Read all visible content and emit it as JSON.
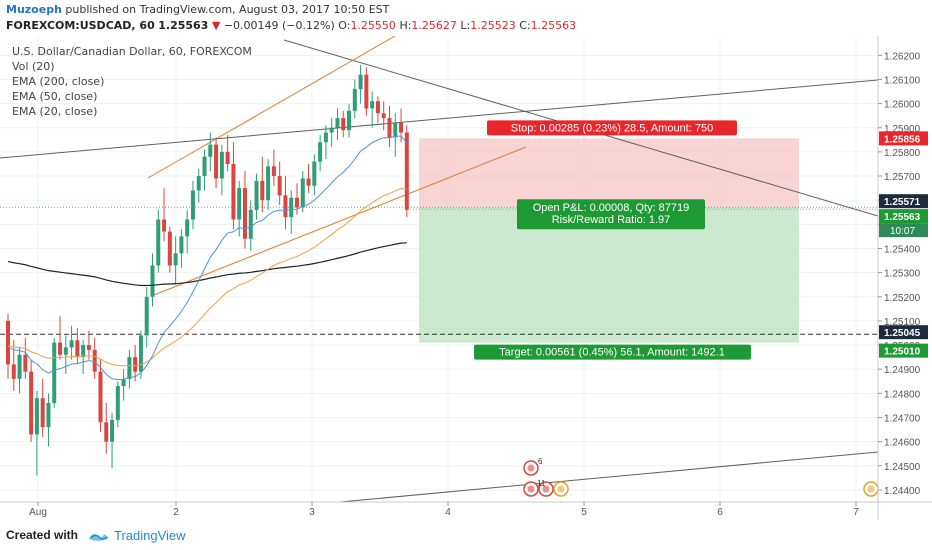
{
  "header": {
    "author": "Muzoeph",
    "published_text": "published on TradingView.com, August 03, 2017 10:50 EST",
    "symbol": "FOREXCOM:USDCAD, 60",
    "last_price": "1.25563",
    "change_arrow": "▼",
    "change": "−0.00149 (−0.12%)",
    "o_label": "O:",
    "o_value": "1.25550",
    "h_label": "H:",
    "h_value": "1.25627",
    "l_label": "L:",
    "l_value": "1.25523",
    "c_label": "C:",
    "c_value": "1.25563"
  },
  "studies": {
    "title": "U.S. Dollar/Canadian Dollar, 60, FOREXCOM",
    "items": [
      "Vol (20)",
      "EMA (200, close)",
      "EMA (50, close)",
      "EMA (20, close)"
    ]
  },
  "position": {
    "stop_label": "Stop: 0.00285 (0.23%) 28.5, Amount: 750",
    "pnl_label": "Open P&L: 0.00008, Qty: 87719",
    "rr_label": "Risk/Reward Ratio: 1.97",
    "target_label": "Target: 0.00561 (0.45%) 56.1, Amount: 1492.1"
  },
  "price_badges": {
    "stop": "1.25856",
    "entry": "1.25571",
    "last": "1.25563",
    "countdown": "10:07",
    "hline": "1.25045",
    "target": "1.25010"
  },
  "events": {
    "ca_count": "6",
    "us_count": "11"
  },
  "footer": {
    "created_with": "Created with",
    "brand": "TradingView"
  },
  "colors": {
    "bull": "#2e9e76",
    "bear": "#d9463f",
    "stop_zone": "#f6c9cb",
    "target_zone": "#c6e7cb",
    "stop_badge": "#e8262b",
    "target_badge": "#1e9a35",
    "ema200": "#222222",
    "ema50": "#f0a046",
    "ema20": "#4f93d8",
    "channel": "#e07d2a",
    "trendline": "#606060"
  },
  "chart_data": {
    "type": "candlestick",
    "y_range": [
      1.2435,
      1.2628
    ],
    "y_ticks": [
      "1.26200",
      "1.26100",
      "1.26000",
      "1.25900",
      "1.25800",
      "1.25700",
      "1.25600",
      "1.25500",
      "1.25400",
      "1.25300",
      "1.25200",
      "1.25100",
      "1.25000",
      "1.24900",
      "1.24800",
      "1.24700",
      "1.24600",
      "1.24500",
      "1.24400"
    ],
    "x_ticks": [
      "Aug",
      "2",
      "3",
      "4",
      "5",
      "6",
      "7"
    ],
    "candles": [
      [
        1.251,
        1.2513,
        1.2486,
        1.2492
      ],
      [
        1.2492,
        1.2502,
        1.2481,
        1.2486
      ],
      [
        1.2486,
        1.2499,
        1.248,
        1.2496
      ],
      [
        1.2496,
        1.2503,
        1.2486,
        1.2489
      ],
      [
        1.2489,
        1.2494,
        1.246,
        1.2463
      ],
      [
        1.2463,
        1.2481,
        1.2446,
        1.2478
      ],
      [
        1.2478,
        1.2486,
        1.2462,
        1.2466
      ],
      [
        1.2466,
        1.248,
        1.2458,
        1.2476
      ],
      [
        1.2476,
        1.2503,
        1.2474,
        1.2501
      ],
      [
        1.2501,
        1.2512,
        1.2494,
        1.2496
      ],
      [
        1.2496,
        1.2504,
        1.2488,
        1.2499
      ],
      [
        1.2499,
        1.2508,
        1.2494,
        1.2502
      ],
      [
        1.2502,
        1.2507,
        1.2492,
        1.2495
      ],
      [
        1.2495,
        1.2502,
        1.2488,
        1.25
      ],
      [
        1.25,
        1.2506,
        1.2494,
        1.2498
      ],
      [
        1.2498,
        1.2503,
        1.2486,
        1.2489
      ],
      [
        1.2489,
        1.2494,
        1.2464,
        1.2468
      ],
      [
        1.2468,
        1.2476,
        1.2455,
        1.246
      ],
      [
        1.246,
        1.2472,
        1.2449,
        1.2469
      ],
      [
        1.2469,
        1.2485,
        1.2466,
        1.2483
      ],
      [
        1.2483,
        1.249,
        1.2477,
        1.2486
      ],
      [
        1.2486,
        1.2498,
        1.2482,
        1.2495
      ],
      [
        1.2495,
        1.25,
        1.2485,
        1.2489
      ],
      [
        1.2489,
        1.2506,
        1.2486,
        1.2504
      ],
      [
        1.2504,
        1.2524,
        1.2499,
        1.252
      ],
      [
        1.252,
        1.2538,
        1.2516,
        1.2533
      ],
      [
        1.2533,
        1.2556,
        1.253,
        1.2552
      ],
      [
        1.2552,
        1.2565,
        1.2543,
        1.2547
      ],
      [
        1.2547,
        1.2549,
        1.253,
        1.2533
      ],
      [
        1.2533,
        1.2545,
        1.2525,
        1.2538
      ],
      [
        1.2538,
        1.2548,
        1.2532,
        1.2545
      ],
      [
        1.2545,
        1.2556,
        1.2538,
        1.2552
      ],
      [
        1.2552,
        1.2568,
        1.2548,
        1.2564
      ],
      [
        1.2564,
        1.2573,
        1.2559,
        1.257
      ],
      [
        1.257,
        1.2581,
        1.2564,
        1.2578
      ],
      [
        1.2578,
        1.2588,
        1.2572,
        1.2583
      ],
      [
        1.2583,
        1.2586,
        1.2565,
        1.2569
      ],
      [
        1.2569,
        1.2583,
        1.2562,
        1.258
      ],
      [
        1.258,
        1.2587,
        1.2572,
        1.2575
      ],
      [
        1.2575,
        1.2584,
        1.2548,
        1.2552
      ],
      [
        1.2552,
        1.2568,
        1.2545,
        1.2565
      ],
      [
        1.2565,
        1.2572,
        1.254,
        1.2544
      ],
      [
        1.2544,
        1.256,
        1.2539,
        1.2556
      ],
      [
        1.2556,
        1.2571,
        1.2552,
        1.2568
      ],
      [
        1.2568,
        1.2578,
        1.2555,
        1.256
      ],
      [
        1.256,
        1.2577,
        1.2556,
        1.2574
      ],
      [
        1.2574,
        1.2581,
        1.2566,
        1.257
      ],
      [
        1.257,
        1.2576,
        1.2558,
        1.2562
      ],
      [
        1.2562,
        1.257,
        1.2548,
        1.2553
      ],
      [
        1.2553,
        1.2564,
        1.2546,
        1.2561
      ],
      [
        1.2561,
        1.2567,
        1.2554,
        1.2557
      ],
      [
        1.2557,
        1.2572,
        1.2555,
        1.2569
      ],
      [
        1.2569,
        1.2575,
        1.2563,
        1.2566
      ],
      [
        1.2566,
        1.2579,
        1.2562,
        1.2576
      ],
      [
        1.2576,
        1.2587,
        1.2572,
        1.2584
      ],
      [
        1.2584,
        1.2591,
        1.2577,
        1.2588
      ],
      [
        1.2588,
        1.2594,
        1.2582,
        1.259
      ],
      [
        1.259,
        1.2598,
        1.2585,
        1.2594
      ],
      [
        1.2594,
        1.2597,
        1.2586,
        1.2589
      ],
      [
        1.2589,
        1.26,
        1.2586,
        1.2597
      ],
      [
        1.2597,
        1.261,
        1.2594,
        1.2606
      ],
      [
        1.2606,
        1.2616,
        1.26,
        1.2612
      ],
      [
        1.2612,
        1.2615,
        1.2595,
        1.2598
      ],
      [
        1.2598,
        1.2605,
        1.259,
        1.2601
      ],
      [
        1.2601,
        1.2603,
        1.2592,
        1.2596
      ],
      [
        1.2596,
        1.2601,
        1.2589,
        1.2594
      ],
      [
        1.2594,
        1.2599,
        1.2582,
        1.2586
      ],
      [
        1.2586,
        1.2596,
        1.2578,
        1.2592
      ],
      [
        1.2592,
        1.2598,
        1.2584,
        1.2588
      ],
      [
        1.2588,
        1.2591,
        1.2553,
        1.2556
      ]
    ]
  }
}
